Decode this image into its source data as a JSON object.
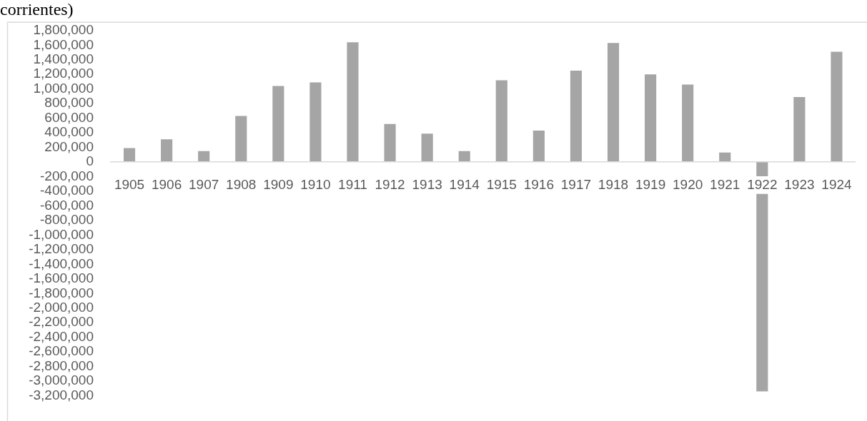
{
  "chart_data": {
    "type": "bar",
    "title": "corrientes)",
    "categories": [
      "1905",
      "1906",
      "1907",
      "1908",
      "1909",
      "1910",
      "1911",
      "1912",
      "1913",
      "1914",
      "1915",
      "1916",
      "1917",
      "1918",
      "1919",
      "1920",
      "1921",
      "1922",
      "1923",
      "1924"
    ],
    "values": [
      190000,
      310000,
      150000,
      630000,
      1040000,
      1090000,
      1640000,
      520000,
      390000,
      150000,
      1120000,
      430000,
      1250000,
      1630000,
      1200000,
      1060000,
      130000,
      -3140000,
      890000,
      1510000
    ],
    "color": "#a5a5a5",
    "ylim": [
      -3200000,
      1800000
    ],
    "yticks": [
      {
        "value": -3200000,
        "label": "-3,200,000"
      },
      {
        "value": -3000000,
        "label": "-3,000,000"
      },
      {
        "value": -2800000,
        "label": "-2,800,000"
      },
      {
        "value": -2600000,
        "label": "-2,600,000"
      },
      {
        "value": -2400000,
        "label": "-2,400,000"
      },
      {
        "value": -2200000,
        "label": "-2,200,000"
      },
      {
        "value": -2000000,
        "label": "-2,000,000"
      },
      {
        "value": -1800000,
        "label": "-1,800,000"
      },
      {
        "value": -1600000,
        "label": "-1,600,000"
      },
      {
        "value": -1400000,
        "label": "-1,400,000"
      },
      {
        "value": -1200000,
        "label": "-1,200,000"
      },
      {
        "value": -1000000,
        "label": "-1,000,000"
      },
      {
        "value": -800000,
        "label": "-800,000"
      },
      {
        "value": -600000,
        "label": "-600,000"
      },
      {
        "value": -400000,
        "label": "-400,000"
      },
      {
        "value": -200000,
        "label": "-200,000"
      },
      0,
      {
        "value": 200000,
        "label": "200,000"
      },
      {
        "value": 400000,
        "label": "400,000"
      },
      {
        "value": 600000,
        "label": "600,000"
      },
      {
        "value": 800000,
        "label": "800,000"
      },
      {
        "value": 1000000,
        "label": "1,000,000"
      },
      {
        "value": 1200000,
        "label": "1,200,000"
      },
      {
        "value": 1400000,
        "label": "1,400,000"
      },
      {
        "value": 1600000,
        "label": "1,600,000"
      },
      {
        "value": 1800000,
        "label": "1,800,000"
      }
    ]
  }
}
